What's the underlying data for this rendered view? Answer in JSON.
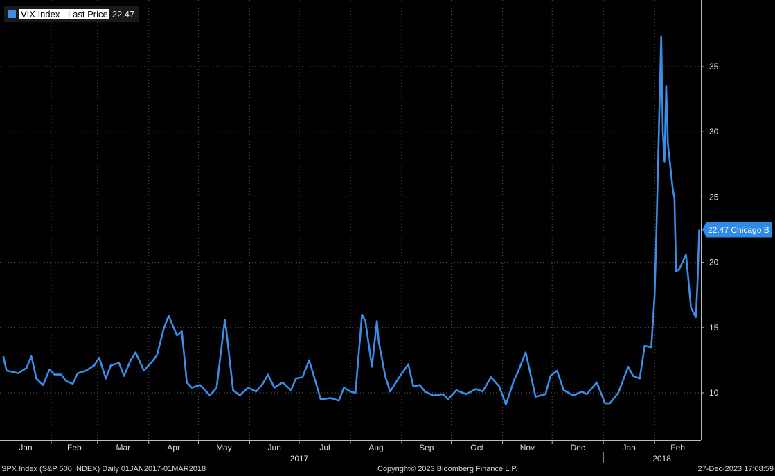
{
  "legend": {
    "name": "VIX Index - Last Price",
    "value": "22.47",
    "color": "#3a8ee6"
  },
  "last_label": "22.47 Chicago B",
  "footer": {
    "left": "SPX Index (S&P 500 INDEX)  Daily 01JAN2017-01MAR2018",
    "center": "Copyright© 2023 Bloomberg Finance L.P.",
    "right": "27-Dec-2023 17:08:59"
  },
  "chart_data": {
    "type": "line",
    "title": "",
    "xlabel": "",
    "ylabel": "",
    "ylim": [
      7,
      40
    ],
    "y_ticks": [
      10,
      15,
      20,
      25,
      30,
      35
    ],
    "x_range": [
      "2017-01-01",
      "2018-03-01"
    ],
    "month_labels": [
      "Jan",
      "Feb",
      "Mar",
      "Apr",
      "May",
      "Jun",
      "Jul",
      "Aug",
      "Sep",
      "Oct",
      "Nov",
      "Dec",
      "Jan",
      "Feb"
    ],
    "year_labels": [
      "2017",
      "2018"
    ],
    "grid": true,
    "legend_position": "top-left",
    "series": [
      {
        "name": "VIX Index - Last Price",
        "color": "#3a8ee6",
        "x": [
          "2017-01-03",
          "2017-01-05",
          "2017-01-09",
          "2017-01-12",
          "2017-01-17",
          "2017-01-20",
          "2017-01-23",
          "2017-01-27",
          "2017-01-31",
          "2017-02-03",
          "2017-02-07",
          "2017-02-10",
          "2017-02-14",
          "2017-02-17",
          "2017-02-22",
          "2017-02-27",
          "2017-03-02",
          "2017-03-06",
          "2017-03-09",
          "2017-03-14",
          "2017-03-17",
          "2017-03-21",
          "2017-03-24",
          "2017-03-29",
          "2017-04-03",
          "2017-04-06",
          "2017-04-10",
          "2017-04-13",
          "2017-04-18",
          "2017-04-21",
          "2017-04-24",
          "2017-04-27",
          "2017-05-02",
          "2017-05-08",
          "2017-05-12",
          "2017-05-17",
          "2017-05-18",
          "2017-05-22",
          "2017-05-26",
          "2017-05-31",
          "2017-06-05",
          "2017-06-09",
          "2017-06-12",
          "2017-06-16",
          "2017-06-21",
          "2017-06-26",
          "2017-06-29",
          "2017-07-03",
          "2017-07-07",
          "2017-07-11",
          "2017-07-14",
          "2017-07-20",
          "2017-07-25",
          "2017-07-28",
          "2017-08-01",
          "2017-08-04",
          "2017-08-08",
          "2017-08-10",
          "2017-08-14",
          "2017-08-17",
          "2017-08-18",
          "2017-08-22",
          "2017-08-25",
          "2017-08-30",
          "2017-09-05",
          "2017-09-08",
          "2017-09-12",
          "2017-09-15",
          "2017-09-20",
          "2017-09-26",
          "2017-09-29",
          "2017-10-04",
          "2017-10-10",
          "2017-10-16",
          "2017-10-20",
          "2017-10-25",
          "2017-10-30",
          "2017-11-03",
          "2017-11-08",
          "2017-11-10",
          "2017-11-15",
          "2017-11-21",
          "2017-11-27",
          "2017-11-30",
          "2017-12-04",
          "2017-12-08",
          "2017-12-14",
          "2017-12-19",
          "2017-12-22",
          "2017-12-28",
          "2018-01-02",
          "2018-01-05",
          "2018-01-10",
          "2018-01-16",
          "2018-01-19",
          "2018-01-23",
          "2018-01-26",
          "2018-01-30",
          "2018-02-01",
          "2018-02-02",
          "2018-02-05",
          "2018-02-06",
          "2018-02-07",
          "2018-02-08",
          "2018-02-09",
          "2018-02-12",
          "2018-02-13",
          "2018-02-14",
          "2018-02-16",
          "2018-02-20",
          "2018-02-22",
          "2018-02-23",
          "2018-02-26",
          "2018-02-27",
          "2018-02-28"
        ],
        "y": [
          12.8,
          11.7,
          11.6,
          11.5,
          11.9,
          12.8,
          11.1,
          10.6,
          11.8,
          11.4,
          11.4,
          10.9,
          10.7,
          11.5,
          11.7,
          12.1,
          12.7,
          11.1,
          12.1,
          12.3,
          11.3,
          12.5,
          13.1,
          11.7,
          12.4,
          12.9,
          14.9,
          15.9,
          14.4,
          14.7,
          10.8,
          10.4,
          10.6,
          9.8,
          10.4,
          15.6,
          14.7,
          10.2,
          9.8,
          10.4,
          10.1,
          10.7,
          11.4,
          10.4,
          10.8,
          10.2,
          11.1,
          11.2,
          12.5,
          10.8,
          9.5,
          9.6,
          9.4,
          10.4,
          10.1,
          10.0,
          16.0,
          15.5,
          12.0,
          15.5,
          14.0,
          11.3,
          10.1,
          11.1,
          12.2,
          10.5,
          10.6,
          10.1,
          9.8,
          9.9,
          9.5,
          10.2,
          9.9,
          10.3,
          10.1,
          11.2,
          10.5,
          9.1,
          11.0,
          11.5,
          13.1,
          9.7,
          9.9,
          11.3,
          11.7,
          10.2,
          9.8,
          10.1,
          9.9,
          10.8,
          9.2,
          9.2,
          10.0,
          12.0,
          11.3,
          11.1,
          13.6,
          13.5,
          17.5,
          22.0,
          37.3,
          29.9,
          27.7,
          33.5,
          29.1,
          25.6,
          24.9,
          19.3,
          19.5,
          20.6,
          17.9,
          16.5,
          15.8,
          18.6,
          22.5
        ]
      }
    ]
  }
}
